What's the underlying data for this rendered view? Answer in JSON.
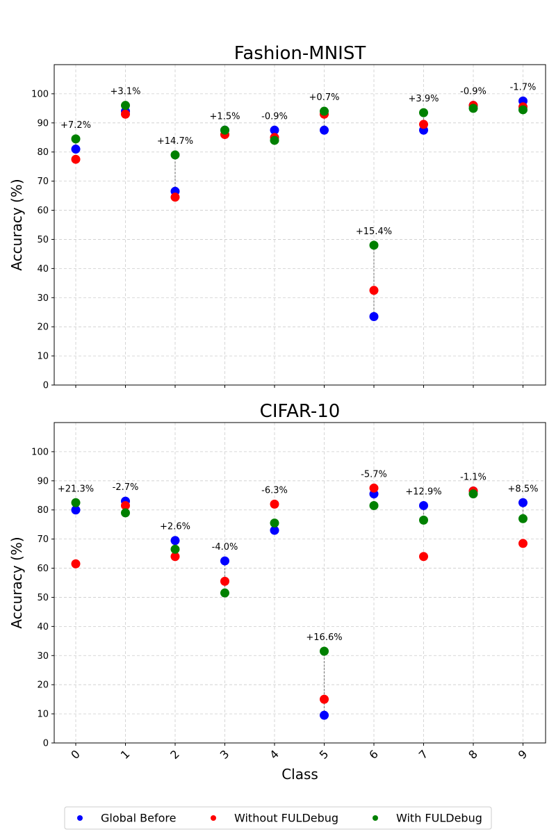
{
  "chart_data": [
    {
      "type": "scatter",
      "title": "Fashion-MNIST",
      "ylabel": "Accuracy (%)",
      "xlabel": "",
      "ylim": [
        0,
        110
      ],
      "yticks": [
        0,
        10,
        20,
        30,
        40,
        50,
        60,
        70,
        80,
        90,
        100
      ],
      "categories": [
        "0",
        "1",
        "2",
        "3",
        "4",
        "5",
        "6",
        "7",
        "8",
        "9"
      ],
      "grid": true,
      "series": [
        {
          "name": "Global Before",
          "color": "#0000ff",
          "values": [
            81.0,
            94.0,
            66.5,
            87.5,
            87.5,
            87.5,
            23.5,
            87.5,
            96.0,
            97.5
          ]
        },
        {
          "name": "Without FULDebug",
          "color": "#ff0000",
          "values": [
            77.5,
            93.0,
            64.5,
            86.0,
            85.0,
            93.0,
            32.5,
            89.5,
            96.0,
            95.5
          ]
        },
        {
          "name": "With FULDebug",
          "color": "#008000",
          "values": [
            84.5,
            96.0,
            79.0,
            87.5,
            84.0,
            94.0,
            48.0,
            93.5,
            95.0,
            94.5
          ]
        }
      ],
      "annotations": [
        "+7.2%",
        "+3.1%",
        "+14.7%",
        "+1.5%",
        "-0.9%",
        "+0.7%",
        "+15.4%",
        "+3.9%",
        "-0.9%",
        "-1.7%"
      ]
    },
    {
      "type": "scatter",
      "title": "CIFAR-10",
      "ylabel": "Accuracy (%)",
      "xlabel": "Class",
      "ylim": [
        0,
        110
      ],
      "yticks": [
        0,
        10,
        20,
        30,
        40,
        50,
        60,
        70,
        80,
        90,
        100
      ],
      "categories": [
        "0",
        "1",
        "2",
        "3",
        "4",
        "5",
        "6",
        "7",
        "8",
        "9"
      ],
      "grid": true,
      "series": [
        {
          "name": "Global Before",
          "color": "#0000ff",
          "values": [
            80.0,
            83.0,
            69.5,
            62.5,
            73.0,
            9.5,
            85.5,
            81.5,
            86.5,
            82.5
          ]
        },
        {
          "name": "Without FULDebug",
          "color": "#ff0000",
          "values": [
            61.5,
            81.5,
            64.0,
            55.5,
            82.0,
            15.0,
            87.5,
            64.0,
            86.5,
            68.5
          ]
        },
        {
          "name": "With FULDebug",
          "color": "#008000",
          "values": [
            82.5,
            79.0,
            66.5,
            51.5,
            75.5,
            31.5,
            81.5,
            76.5,
            85.5,
            77.0
          ]
        }
      ],
      "annotations": [
        "+21.3%",
        "-2.7%",
        "+2.6%",
        "-4.0%",
        "-6.3%",
        "+16.6%",
        "-5.7%",
        "+12.9%",
        "-1.1%",
        "+8.5%"
      ]
    }
  ],
  "legend": {
    "placement": "bottom-center",
    "items": [
      "Global Before",
      "Without FULDebug",
      "With FULDebug"
    ]
  }
}
